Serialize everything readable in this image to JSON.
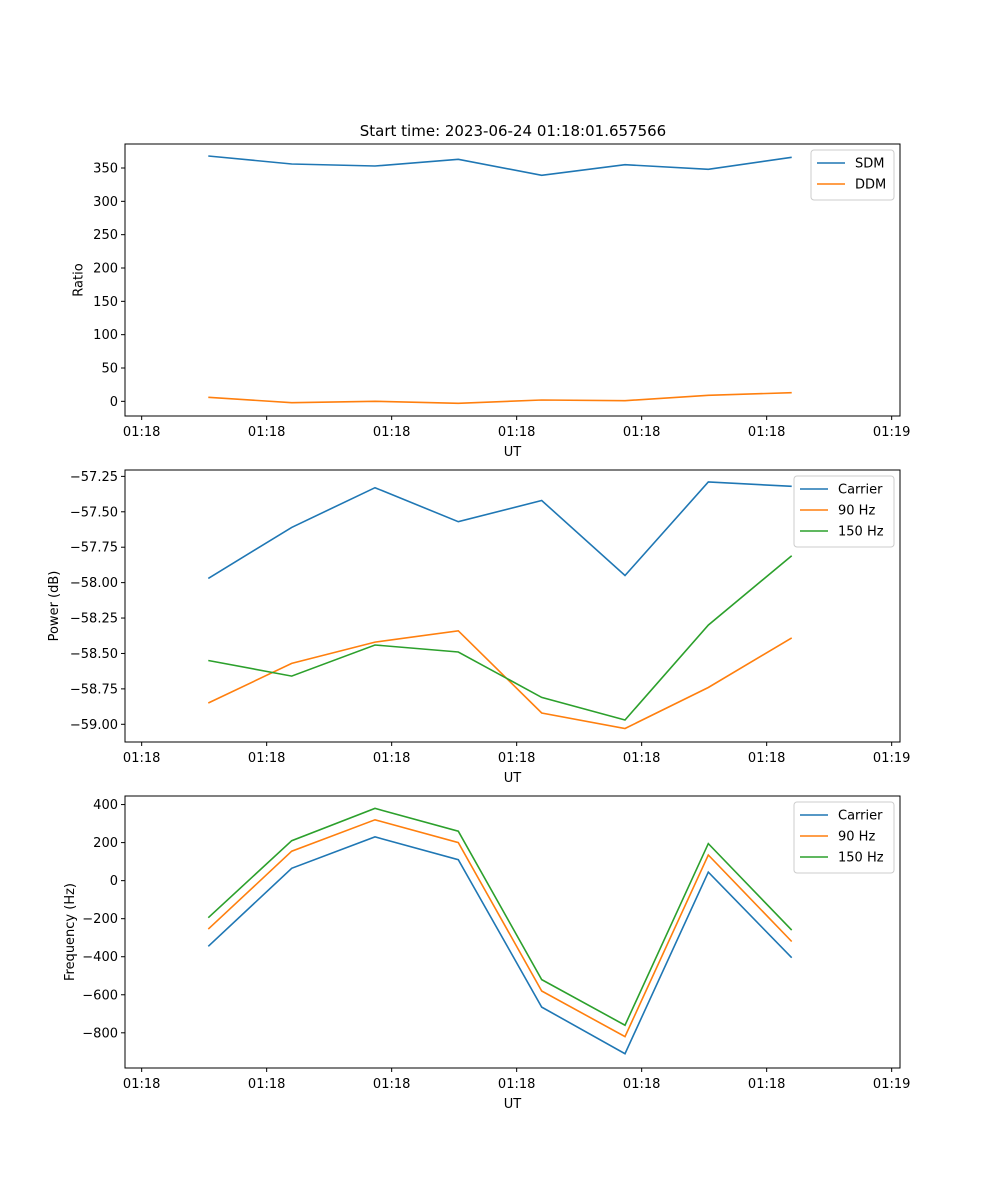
{
  "title": "Start time: 2023-06-24 01:18:01.657566",
  "chart_data": [
    {
      "type": "line",
      "xlabel": "UT",
      "ylabel": "Ratio",
      "xlim": [
        0,
        9.3
      ],
      "ylim": [
        -22,
        386
      ],
      "xticks": [
        0.2,
        1.7,
        3.2,
        4.7,
        6.2,
        7.7,
        9.2
      ],
      "xtick_labels": [
        "01:18",
        "01:18",
        "01:18",
        "01:18",
        "01:18",
        "01:18",
        "01:19"
      ],
      "yticks": [
        0,
        50,
        100,
        150,
        200,
        250,
        300,
        350
      ],
      "ytick_labels": [
        "0",
        "50",
        "100",
        "150",
        "200",
        "250",
        "300",
        "350"
      ],
      "legend_position": "top-right",
      "x": [
        1,
        2,
        3,
        4,
        5,
        6,
        7,
        8
      ],
      "series": [
        {
          "name": "SDM",
          "color": "#1f77b4",
          "values": [
            368,
            356,
            353,
            363,
            339,
            355,
            348,
            366
          ]
        },
        {
          "name": "DDM",
          "color": "#ff7f0e",
          "values": [
            6,
            -2,
            0,
            -3,
            2,
            1,
            9,
            13
          ]
        }
      ]
    },
    {
      "type": "line",
      "xlabel": "UT",
      "ylabel": "Power (dB)",
      "xlim": [
        0,
        9.3
      ],
      "ylim": [
        -59.125,
        -57.205
      ],
      "xticks": [
        0.2,
        1.7,
        3.2,
        4.7,
        6.2,
        7.7,
        9.2
      ],
      "xtick_labels": [
        "01:18",
        "01:18",
        "01:18",
        "01:18",
        "01:18",
        "01:18",
        "01:19"
      ],
      "yticks": [
        -59.0,
        -58.75,
        -58.5,
        -58.25,
        -58.0,
        -57.75,
        -57.5,
        -57.25
      ],
      "ytick_labels": [
        "−59.00",
        "−58.75",
        "−58.50",
        "−58.25",
        "−58.00",
        "−57.75",
        "−57.50",
        "−57.25"
      ],
      "legend_position": "top-right",
      "x": [
        1,
        2,
        3,
        4,
        5,
        6,
        7,
        8
      ],
      "series": [
        {
          "name": "Carrier",
          "color": "#1f77b4",
          "values": [
            -57.97,
            -57.61,
            -57.33,
            -57.57,
            -57.42,
            -57.95,
            -57.29,
            -57.32
          ]
        },
        {
          "name": "90 Hz",
          "color": "#ff7f0e",
          "values": [
            -58.85,
            -58.57,
            -58.42,
            -58.34,
            -58.92,
            -59.03,
            -58.74,
            -58.39
          ]
        },
        {
          "name": "150 Hz",
          "color": "#2ca02c",
          "values": [
            -58.55,
            -58.66,
            -58.44,
            -58.49,
            -58.81,
            -58.97,
            -58.3,
            -57.81
          ]
        }
      ]
    },
    {
      "type": "line",
      "xlabel": "UT",
      "ylabel": "Frequency (Hz)",
      "xlim": [
        0,
        9.3
      ],
      "ylim": [
        -985,
        445
      ],
      "xticks": [
        0.2,
        1.7,
        3.2,
        4.7,
        6.2,
        7.7,
        9.2
      ],
      "xtick_labels": [
        "01:18",
        "01:18",
        "01:18",
        "01:18",
        "01:18",
        "01:18",
        "01:19"
      ],
      "yticks": [
        -800,
        -600,
        -400,
        -200,
        0,
        200,
        400
      ],
      "ytick_labels": [
        "−800",
        "−600",
        "−400",
        "−200",
        "0",
        "200",
        "400"
      ],
      "legend_position": "top-right",
      "x": [
        1,
        2,
        3,
        4,
        5,
        6,
        7,
        8
      ],
      "series": [
        {
          "name": "Carrier",
          "color": "#1f77b4",
          "values": [
            -345,
            65,
            230,
            110,
            -665,
            -910,
            45,
            -405
          ]
        },
        {
          "name": "90 Hz",
          "color": "#ff7f0e",
          "values": [
            -255,
            155,
            320,
            200,
            -580,
            -820,
            135,
            -320
          ]
        },
        {
          "name": "150 Hz",
          "color": "#2ca02c",
          "values": [
            -195,
            210,
            380,
            260,
            -520,
            -760,
            195,
            -260
          ]
        }
      ]
    }
  ]
}
